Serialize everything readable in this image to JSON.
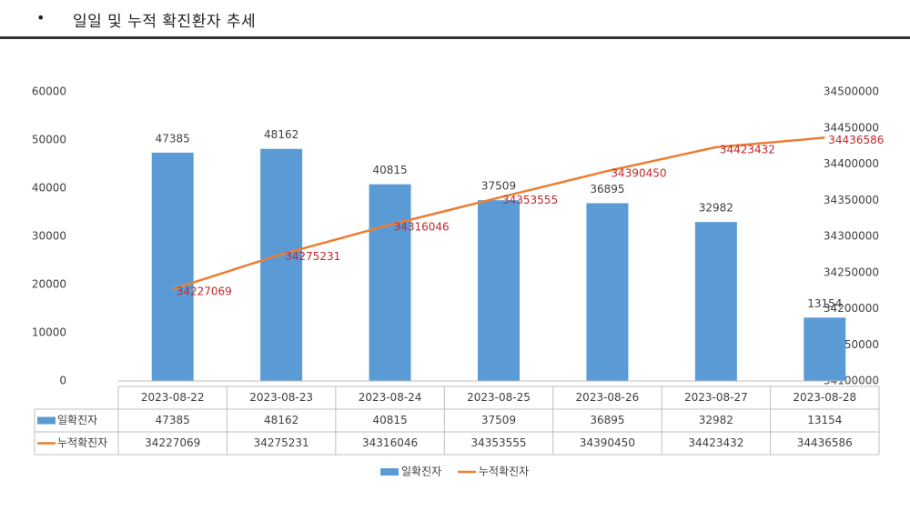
{
  "header": {
    "bullet": "•",
    "title": "일일 및 누적 확진환자 추세"
  },
  "colors": {
    "bar": "#5b9bd5",
    "line": "#ed7d31",
    "line_label": "#c0282d",
    "text": "#404040",
    "grid": "#bfbfbf"
  },
  "chart_data": {
    "type": "bar",
    "categories": [
      "2023-08-22",
      "2023-08-23",
      "2023-08-24",
      "2023-08-25",
      "2023-08-26",
      "2023-08-27",
      "2023-08-28"
    ],
    "series": [
      {
        "name": "일확진자",
        "type": "bar",
        "axis": "left",
        "values": [
          47385,
          48162,
          40815,
          37509,
          36895,
          32982,
          13154
        ]
      },
      {
        "name": "누적확진자",
        "type": "line",
        "axis": "right",
        "values": [
          34227069,
          34275231,
          34316046,
          34353555,
          34390450,
          34423432,
          34436586
        ]
      }
    ],
    "y_left": {
      "min": 0,
      "max": 60000,
      "step": 10000
    },
    "y_right": {
      "min": 34100000,
      "max": 34500000,
      "step": 50000
    },
    "legend": "bottom",
    "data_table": true,
    "grid": false
  }
}
